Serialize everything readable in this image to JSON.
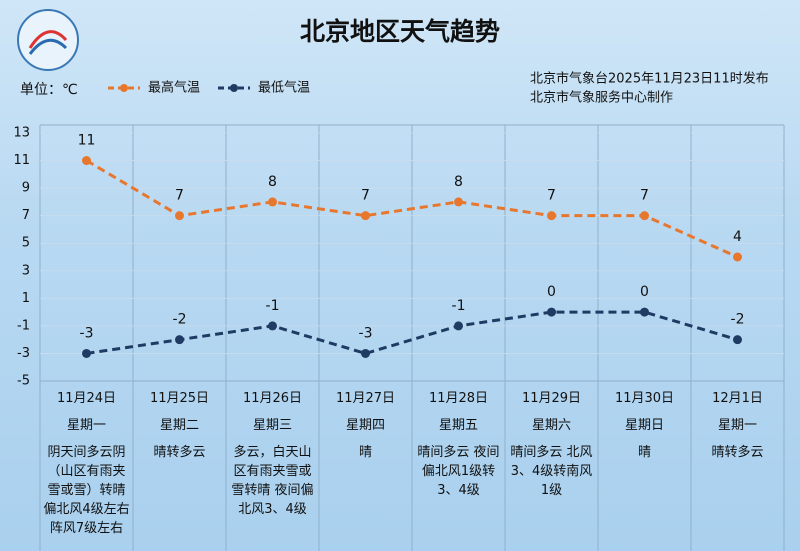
{
  "chart_data": {
    "type": "line",
    "title": "北京地区天气趋势",
    "unit_label": "单位：℃",
    "source": [
      "北京市气象台2025年11月23日11时发布",
      "北京市气象服务中心制作"
    ],
    "categories": [
      "11月24日",
      "11月25日",
      "11月26日",
      "11月27日",
      "11月28日",
      "11月29日",
      "11月30日",
      "12月1日"
    ],
    "weekdays": [
      "星期一",
      "星期二",
      "星期三",
      "星期四",
      "星期五",
      "星期六",
      "星期日",
      "星期一"
    ],
    "descriptions": [
      "阴天间多云阴（山区有雨夹雪或雪）转晴偏北风4级左右 阵风7级左右",
      "晴转多云",
      "多云，白天山区有雨夹雪或雪转晴 夜间偏北风3、4级",
      "晴",
      "晴间多云 夜间偏北风1级转3、4级",
      "晴间多云 北风3、4级转南风1级",
      "晴",
      "晴转多云"
    ],
    "series": [
      {
        "name": "最高气温",
        "color": "#e8772e",
        "values": [
          11,
          7,
          8,
          7,
          8,
          7,
          7,
          4
        ]
      },
      {
        "name": "最低气温",
        "color": "#1f3b63",
        "values": [
          -3,
          -2,
          -1,
          -3,
          -1,
          0,
          0,
          -2
        ]
      }
    ],
    "ylim": [
      -5,
      13
    ],
    "yticks": [
      -5,
      -3,
      -1,
      1,
      3,
      5,
      7,
      9,
      11,
      13
    ],
    "grid": true
  }
}
